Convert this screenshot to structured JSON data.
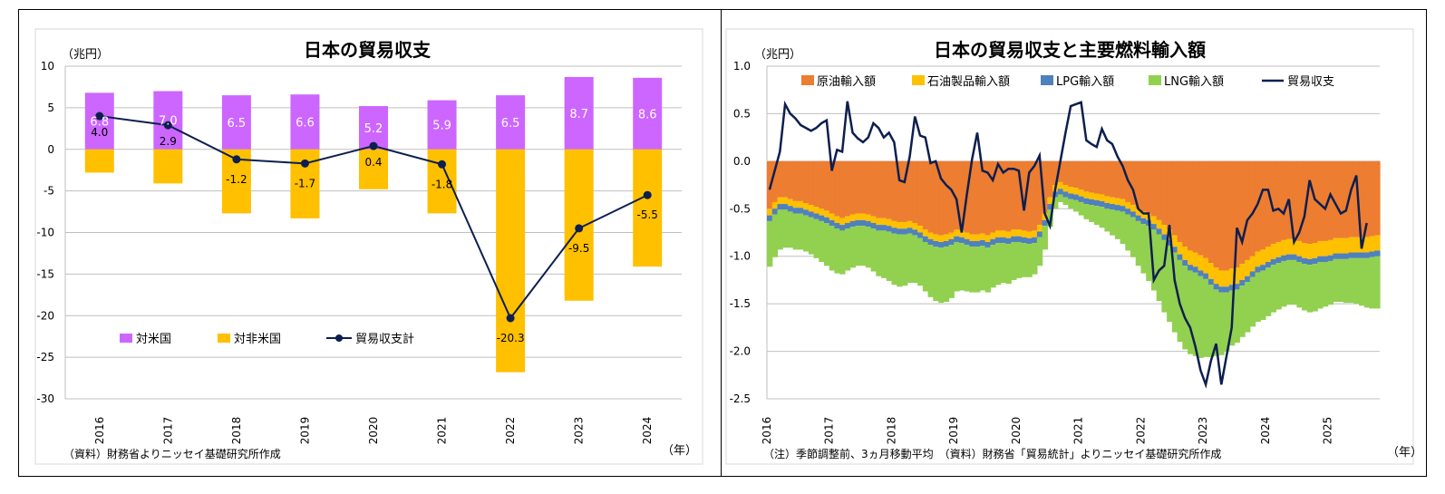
{
  "chart_data": [
    {
      "type": "bar",
      "title": "日本の貿易収支",
      "unit_label": "（兆円）",
      "year_unit": "（年）",
      "source": "（資料）財務省よりニッセイ基礎研究所作成",
      "categories": [
        "2016",
        "2017",
        "2018",
        "2019",
        "2020",
        "2021",
        "2022",
        "2023",
        "2024"
      ],
      "ylim": [
        -30,
        10
      ],
      "yticks": [
        10,
        5,
        0,
        -5,
        -10,
        -15,
        -20,
        -25,
        -30
      ],
      "grid": true,
      "legend_position": "lower-left",
      "series": [
        {
          "name": "対米国",
          "type": "bar",
          "color": "#cc66ff",
          "values": [
            6.8,
            7.0,
            6.5,
            6.6,
            5.2,
            5.9,
            6.5,
            8.7,
            8.6
          ]
        },
        {
          "name": "対非米国",
          "type": "bar",
          "color": "#ffc000",
          "values": [
            -2.8,
            -4.1,
            -7.7,
            -8.3,
            -4.8,
            -7.7,
            -26.8,
            -18.2,
            -14.1
          ]
        },
        {
          "name": "貿易収支計",
          "type": "line",
          "color": "#0d1f4f",
          "values": [
            4.0,
            2.9,
            -1.2,
            -1.7,
            0.4,
            -1.8,
            -20.3,
            -9.5,
            -5.5
          ]
        }
      ]
    },
    {
      "type": "area",
      "title": "日本の貿易収支と主要燃料輸入額",
      "unit_label": "（兆円）",
      "year_unit": "（年）",
      "note": "（注）季節調整前、3ヵ月移動平均　（資料）財務省「貿易統計」よりニッセイ基礎研究所作成",
      "x_labels": [
        "2016",
        "2017",
        "2018",
        "2019",
        "2020",
        "2021",
        "2022",
        "2023",
        "2024",
        "2025"
      ],
      "x_start": "2016-01",
      "ylim": [
        -2.5,
        1.0
      ],
      "yticks": [
        "1.0",
        "0.5",
        "0.0",
        "-0.5",
        "-1.0",
        "-1.5",
        "-2.0",
        "-2.5"
      ],
      "grid": true,
      "legend_position": "top",
      "series": [
        {
          "name": "原油輸入額",
          "color": "#ed7d31",
          "values": [
            -0.5,
            -0.43,
            -0.38,
            -0.38,
            -0.4,
            -0.42,
            -0.42,
            -0.44,
            -0.46,
            -0.48,
            -0.5,
            -0.52,
            -0.55,
            -0.58,
            -0.6,
            -0.58,
            -0.56,
            -0.55,
            -0.55,
            -0.56,
            -0.58,
            -0.6,
            -0.6,
            -0.61,
            -0.63,
            -0.64,
            -0.64,
            -0.63,
            -0.65,
            -0.68,
            -0.72,
            -0.75,
            -0.77,
            -0.78,
            -0.77,
            -0.75,
            -0.72,
            -0.73,
            -0.75,
            -0.77,
            -0.77,
            -0.76,
            -0.78,
            -0.75,
            -0.73,
            -0.73,
            -0.74,
            -0.72,
            -0.72,
            -0.73,
            -0.74,
            -0.73,
            -0.67,
            -0.55,
            -0.38,
            -0.25,
            -0.22,
            -0.25,
            -0.27,
            -0.28,
            -0.3,
            -0.32,
            -0.33,
            -0.34,
            -0.35,
            -0.37,
            -0.38,
            -0.39,
            -0.4,
            -0.43,
            -0.46,
            -0.5,
            -0.53,
            -0.55,
            -0.58,
            -0.62,
            -0.67,
            -0.72,
            -0.78,
            -0.85,
            -0.9,
            -0.94,
            -0.96,
            -0.99,
            -1.02,
            -1.07,
            -1.12,
            -1.15,
            -1.15,
            -1.13,
            -1.12,
            -1.08,
            -1.04,
            -1.0,
            -0.95,
            -0.93,
            -0.9,
            -0.87,
            -0.85,
            -0.83,
            -0.82,
            -0.82,
            -0.84,
            -0.86,
            -0.87,
            -0.86,
            -0.84,
            -0.84,
            -0.83,
            -0.81,
            -0.81,
            -0.81,
            -0.8,
            -0.8,
            -0.8,
            -0.8,
            -0.79,
            -0.78
          ]
        },
        {
          "name": "石油製品輸入額",
          "color": "#ffc000",
          "values": [
            -0.07,
            -0.07,
            -0.07,
            -0.07,
            -0.07,
            -0.07,
            -0.07,
            -0.07,
            -0.07,
            -0.07,
            -0.07,
            -0.07,
            -0.07,
            -0.07,
            -0.07,
            -0.07,
            -0.07,
            -0.07,
            -0.07,
            -0.07,
            -0.07,
            -0.07,
            -0.07,
            -0.07,
            -0.07,
            -0.07,
            -0.07,
            -0.07,
            -0.07,
            -0.07,
            -0.07,
            -0.07,
            -0.07,
            -0.07,
            -0.07,
            -0.07,
            -0.07,
            -0.07,
            -0.07,
            -0.07,
            -0.07,
            -0.07,
            -0.07,
            -0.07,
            -0.07,
            -0.07,
            -0.07,
            -0.07,
            -0.07,
            -0.07,
            -0.07,
            -0.07,
            -0.07,
            -0.07,
            -0.07,
            -0.07,
            -0.07,
            -0.07,
            -0.07,
            -0.07,
            -0.07,
            -0.07,
            -0.07,
            -0.07,
            -0.07,
            -0.07,
            -0.07,
            -0.07,
            -0.07,
            -0.07,
            -0.07,
            -0.07,
            -0.07,
            -0.07,
            -0.08,
            -0.09,
            -0.1,
            -0.11,
            -0.12,
            -0.13,
            -0.14,
            -0.15,
            -0.15,
            -0.16,
            -0.16,
            -0.17,
            -0.17,
            -0.17,
            -0.17,
            -0.17,
            -0.17,
            -0.17,
            -0.17,
            -0.16,
            -0.16,
            -0.16,
            -0.16,
            -0.16,
            -0.16,
            -0.16,
            -0.16,
            -0.16,
            -0.16,
            -0.16,
            -0.16,
            -0.16,
            -0.16,
            -0.16,
            -0.16,
            -0.16,
            -0.16,
            -0.16,
            -0.16,
            -0.16,
            -0.16,
            -0.16,
            -0.16,
            -0.16
          ]
        },
        {
          "name": "LPG輸入額",
          "color": "#4f81bd",
          "values": [
            -0.06,
            -0.06,
            -0.06,
            -0.06,
            -0.06,
            -0.06,
            -0.06,
            -0.06,
            -0.06,
            -0.06,
            -0.06,
            -0.06,
            -0.06,
            -0.06,
            -0.06,
            -0.06,
            -0.06,
            -0.06,
            -0.06,
            -0.06,
            -0.06,
            -0.06,
            -0.06,
            -0.06,
            -0.06,
            -0.06,
            -0.06,
            -0.06,
            -0.06,
            -0.06,
            -0.06,
            -0.06,
            -0.06,
            -0.06,
            -0.06,
            -0.06,
            -0.06,
            -0.06,
            -0.06,
            -0.06,
            -0.06,
            -0.06,
            -0.06,
            -0.06,
            -0.06,
            -0.06,
            -0.06,
            -0.06,
            -0.06,
            -0.06,
            -0.06,
            -0.06,
            -0.06,
            -0.06,
            -0.06,
            -0.06,
            -0.06,
            -0.06,
            -0.06,
            -0.06,
            -0.06,
            -0.06,
            -0.06,
            -0.06,
            -0.06,
            -0.06,
            -0.06,
            -0.06,
            -0.06,
            -0.06,
            -0.06,
            -0.06,
            -0.06,
            -0.06,
            -0.06,
            -0.06,
            -0.06,
            -0.06,
            -0.06,
            -0.06,
            -0.06,
            -0.06,
            -0.06,
            -0.06,
            -0.06,
            -0.06,
            -0.06,
            -0.06,
            -0.06,
            -0.06,
            -0.06,
            -0.06,
            -0.06,
            -0.06,
            -0.06,
            -0.06,
            -0.06,
            -0.06,
            -0.06,
            -0.06,
            -0.06,
            -0.06,
            -0.06,
            -0.06,
            -0.06,
            -0.06,
            -0.06,
            -0.06,
            -0.06,
            -0.06,
            -0.06,
            -0.06,
            -0.06,
            -0.06,
            -0.06,
            -0.06,
            -0.06,
            -0.06
          ]
        },
        {
          "name": "LNG輸入額",
          "color": "#92d050",
          "values": [
            -0.48,
            -0.45,
            -0.42,
            -0.4,
            -0.38,
            -0.38,
            -0.38,
            -0.38,
            -0.39,
            -0.41,
            -0.43,
            -0.45,
            -0.47,
            -0.47,
            -0.46,
            -0.44,
            -0.43,
            -0.42,
            -0.42,
            -0.43,
            -0.45,
            -0.48,
            -0.5,
            -0.52,
            -0.54,
            -0.55,
            -0.54,
            -0.52,
            -0.5,
            -0.5,
            -0.52,
            -0.55,
            -0.57,
            -0.58,
            -0.58,
            -0.56,
            -0.52,
            -0.5,
            -0.49,
            -0.48,
            -0.48,
            -0.47,
            -0.47,
            -0.45,
            -0.44,
            -0.42,
            -0.42,
            -0.4,
            -0.38,
            -0.36,
            -0.35,
            -0.33,
            -0.3,
            -0.25,
            -0.18,
            -0.12,
            -0.08,
            -0.08,
            -0.1,
            -0.12,
            -0.14,
            -0.16,
            -0.18,
            -0.2,
            -0.22,
            -0.24,
            -0.27,
            -0.3,
            -0.34,
            -0.38,
            -0.42,
            -0.47,
            -0.52,
            -0.58,
            -0.64,
            -0.7,
            -0.76,
            -0.8,
            -0.84,
            -0.86,
            -0.88,
            -0.88,
            -0.88,
            -0.86,
            -0.82,
            -0.76,
            -0.7,
            -0.66,
            -0.62,
            -0.58,
            -0.56,
            -0.54,
            -0.53,
            -0.52,
            -0.52,
            -0.52,
            -0.51,
            -0.5,
            -0.49,
            -0.48,
            -0.47,
            -0.47,
            -0.48,
            -0.49,
            -0.5,
            -0.5,
            -0.49,
            -0.47,
            -0.46,
            -0.45,
            -0.45,
            -0.46,
            -0.47,
            -0.48,
            -0.5,
            -0.52,
            -0.54,
            -0.55
          ]
        },
        {
          "name": "貿易収支",
          "type": "line",
          "color": "#0d1f4f",
          "values": [
            -0.3,
            -0.1,
            0.1,
            0.6,
            0.5,
            0.45,
            0.38,
            0.35,
            0.32,
            0.35,
            0.4,
            0.43,
            -0.1,
            0.12,
            0.1,
            0.63,
            0.3,
            0.24,
            0.2,
            0.25,
            0.4,
            0.35,
            0.25,
            0.3,
            0.2,
            -0.2,
            -0.22,
            0.05,
            0.47,
            0.27,
            0.25,
            -0.02,
            0.0,
            -0.18,
            -0.25,
            -0.3,
            -0.4,
            -0.75,
            -0.35,
            0.02,
            0.3,
            -0.1,
            -0.12,
            -0.2,
            -0.03,
            -0.12,
            -0.08,
            -0.08,
            -0.1,
            -0.52,
            -0.12,
            -0.05,
            0.06,
            -0.55,
            -0.68,
            -0.3,
            0.0,
            0.3,
            0.58,
            0.6,
            0.62,
            0.22,
            0.18,
            0.15,
            0.34,
            0.22,
            0.18,
            0.05,
            -0.05,
            -0.2,
            -0.3,
            -0.5,
            -0.55,
            -0.55,
            -1.25,
            -1.15,
            -1.1,
            -0.67,
            -1.25,
            -1.5,
            -1.65,
            -1.75,
            -1.95,
            -2.2,
            -2.35,
            -2.1,
            -1.92,
            -2.35,
            -2.05,
            -1.75,
            -0.7,
            -0.85,
            -0.62,
            -0.55,
            -0.45,
            -0.3,
            -0.3,
            -0.52,
            -0.5,
            -0.55,
            -0.4,
            -0.85,
            -0.75,
            -0.58,
            -0.2,
            -0.4,
            -0.45,
            -0.5,
            -0.35,
            -0.45,
            -0.55,
            -0.52,
            -0.3,
            -0.15,
            -0.92,
            -0.65
          ]
        }
      ]
    }
  ]
}
